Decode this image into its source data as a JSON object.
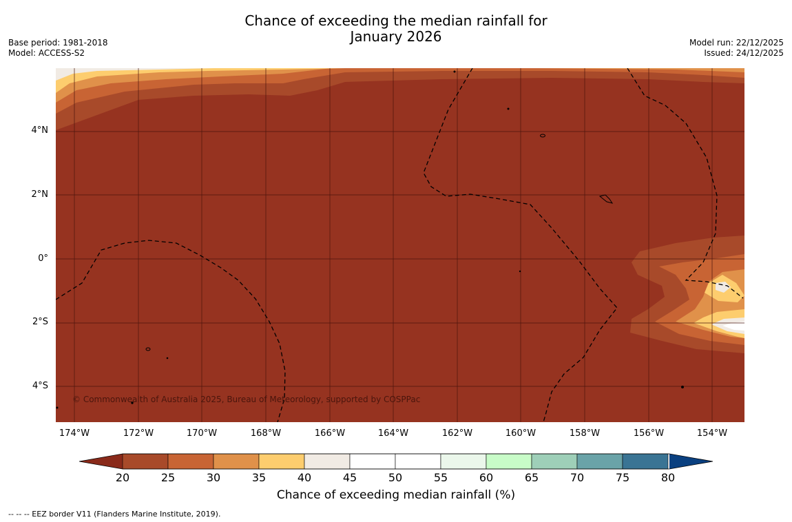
{
  "title_line1": "Chance of exceeding the median rainfall for",
  "title_line2": "January 2026",
  "meta_left": [
    "Base period: 1981-2018",
    "Model: ACCESS-S2"
  ],
  "meta_right": [
    "Model run: 22/12/2025",
    "Issued: 24/12/2025"
  ],
  "lat_ticks": [
    "4°N",
    "2°N",
    "0°",
    "2°S",
    "4°S"
  ],
  "lon_ticks": [
    "174°W",
    "172°W",
    "170°W",
    "168°W",
    "166°W",
    "164°W",
    "162°W",
    "160°W",
    "158°W",
    "156°W",
    "154°W"
  ],
  "copyright": "© Commonwealth of Australia 2025, Bureau of Meteorology, supported by COSPPac",
  "colorbar": {
    "ticks": [
      "20",
      "25",
      "30",
      "35",
      "40",
      "45",
      "50",
      "55",
      "60",
      "65",
      "70",
      "75",
      "80"
    ],
    "label": "Chance of exceeding median rainfall (%)",
    "colors": {
      "below_20": "#8a2a1a",
      "c20_25": "#a84a2a",
      "c25_30": "#c86434",
      "c30_35": "#e0914a",
      "c35_40": "#fdcd6e",
      "c40_45": "#f1ebe4",
      "c45_50": "#ffffff",
      "c50_55": "#ffffff",
      "c55_60": "#ebf7eb",
      "c60_65": "#c8fcc8",
      "c65_70": "#9ecfb8",
      "c70_75": "#6aa3a8",
      "c75_80": "#3a7494",
      "above_80": "#0a4080"
    }
  },
  "footnote": "--  --  -- EEZ border V11 (Flanders Marine Institute, 2019).",
  "map_colors": {
    "background": "#963320",
    "grid": "#4a150c",
    "eez": "#000000"
  }
}
